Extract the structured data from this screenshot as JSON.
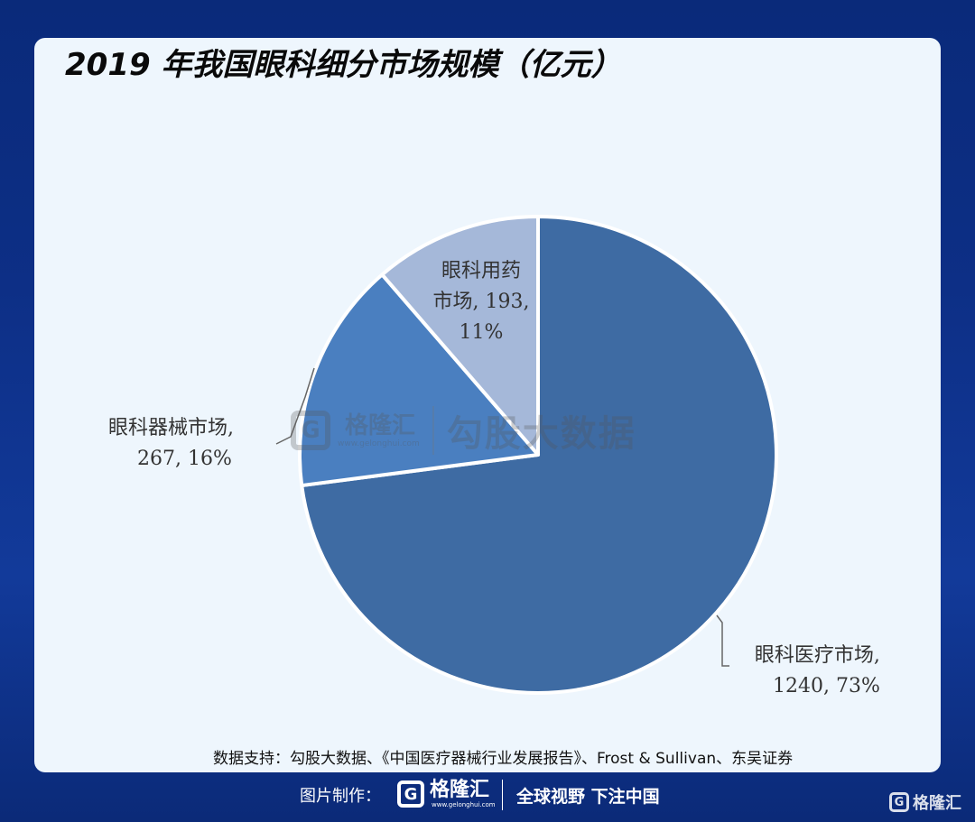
{
  "title": "2019 年我国眼科细分市场规模（亿元）",
  "chart_data": {
    "type": "pie",
    "title": "2019 年我国眼科细分市场规模（亿元）",
    "unit": "亿元",
    "slices": [
      {
        "name": "眼科医疗市场",
        "value": 1240,
        "percent": 73,
        "color": "#3e6ba3",
        "label_lines": [
          "眼科医疗市场,",
          "1240, 73%"
        ]
      },
      {
        "name": "眼科器械市场",
        "value": 267,
        "percent": 16,
        "color": "#4a7fc0",
        "label_lines": [
          "眼科器械市场,",
          "267, 16%"
        ]
      },
      {
        "name": "眼科用药市场",
        "value": 193,
        "percent": 11,
        "color": "#a5b8d9",
        "label_lines": [
          "眼科用药",
          "市场, 193,",
          "11%"
        ]
      }
    ]
  },
  "watermark": {
    "logo_letter": "G",
    "brand": "格隆汇",
    "url": "www.gelonghui.com",
    "text": "勾股大数据"
  },
  "source": "数据支持：勾股大数据、《中国医疗器械行业发展报告》、Frost & Sullivan、东吴证券",
  "footer": {
    "label": "图片制作：",
    "logo_letter": "G",
    "brand": "格隆汇",
    "url": "www.gelonghui.com",
    "slogan": "全球视野 下注中国"
  },
  "corner": {
    "logo_letter": "G",
    "brand": "格隆汇"
  }
}
